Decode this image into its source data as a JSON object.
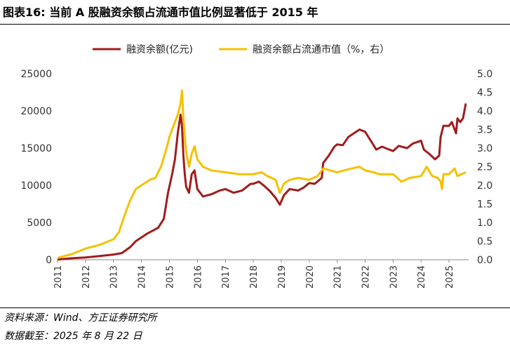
{
  "header": {
    "title": "图表16: 当前 A 股融资余额占流通市值比例显著低于 2015 年"
  },
  "footer": {
    "source": "资料来源：Wind、方正证券研究所",
    "date": "数据截至：2025 年 8 月 22 日"
  },
  "chart_data": {
    "type": "line",
    "legend_position": "top",
    "grid": false,
    "x_ticks": [
      "2011",
      "2012",
      "2013",
      "2014",
      "2015",
      "2016",
      "2017",
      "2018",
      "2019",
      "2020",
      "2021",
      "2022",
      "2023",
      "2024",
      "2025"
    ],
    "xlim": [
      2011.0,
      2025.7
    ],
    "y_left": {
      "ylim": [
        0,
        25000
      ],
      "ticks": [
        0,
        5000,
        10000,
        15000,
        20000,
        25000
      ]
    },
    "y_right": {
      "ylim": [
        0.0,
        5.0
      ],
      "ticks": [
        "0.0",
        "0.5",
        "1.0",
        "1.5",
        "2.0",
        "2.5",
        "3.0",
        "3.5",
        "4.0",
        "4.5",
        "5.0"
      ]
    },
    "series": [
      {
        "name": "融资余额(亿元)",
        "axis": "left",
        "color": "#a01c1c",
        "points": [
          [
            2011.0,
            20
          ],
          [
            2011.5,
            200
          ],
          [
            2012.0,
            300
          ],
          [
            2012.5,
            500
          ],
          [
            2013.0,
            700
          ],
          [
            2013.3,
            900
          ],
          [
            2013.6,
            1700
          ],
          [
            2013.8,
            2500
          ],
          [
            2014.0,
            3000
          ],
          [
            2014.2,
            3500
          ],
          [
            2014.4,
            3900
          ],
          [
            2014.6,
            4300
          ],
          [
            2014.8,
            5500
          ],
          [
            2014.95,
            9000
          ],
          [
            2015.1,
            11500
          ],
          [
            2015.2,
            13500
          ],
          [
            2015.3,
            17000
          ],
          [
            2015.4,
            19500
          ],
          [
            2015.45,
            18000
          ],
          [
            2015.5,
            14000
          ],
          [
            2015.55,
            11500
          ],
          [
            2015.6,
            9800
          ],
          [
            2015.7,
            9000
          ],
          [
            2015.8,
            11500
          ],
          [
            2015.9,
            12000
          ],
          [
            2016.0,
            9500
          ],
          [
            2016.2,
            8500
          ],
          [
            2016.5,
            8800
          ],
          [
            2016.8,
            9300
          ],
          [
            2017.0,
            9500
          ],
          [
            2017.3,
            9000
          ],
          [
            2017.6,
            9300
          ],
          [
            2017.9,
            10200
          ],
          [
            2018.0,
            10200
          ],
          [
            2018.2,
            10500
          ],
          [
            2018.4,
            9900
          ],
          [
            2018.6,
            9200
          ],
          [
            2018.8,
            8300
          ],
          [
            2018.95,
            7400
          ],
          [
            2019.1,
            8700
          ],
          [
            2019.3,
            9500
          ],
          [
            2019.6,
            9300
          ],
          [
            2019.8,
            9700
          ],
          [
            2020.0,
            10300
          ],
          [
            2020.2,
            10200
          ],
          [
            2020.45,
            11000
          ],
          [
            2020.5,
            13000
          ],
          [
            2020.7,
            14000
          ],
          [
            2020.9,
            15200
          ],
          [
            2021.0,
            15500
          ],
          [
            2021.2,
            15400
          ],
          [
            2021.4,
            16500
          ],
          [
            2021.6,
            17000
          ],
          [
            2021.8,
            17500
          ],
          [
            2022.0,
            17200
          ],
          [
            2022.2,
            16000
          ],
          [
            2022.4,
            14800
          ],
          [
            2022.6,
            15200
          ],
          [
            2022.8,
            14900
          ],
          [
            2023.0,
            14600
          ],
          [
            2023.2,
            15300
          ],
          [
            2023.5,
            15000
          ],
          [
            2023.7,
            15600
          ],
          [
            2024.0,
            16000
          ],
          [
            2024.1,
            14800
          ],
          [
            2024.3,
            14200
          ],
          [
            2024.5,
            13500
          ],
          [
            2024.65,
            14000
          ],
          [
            2024.7,
            16500
          ],
          [
            2024.8,
            18000
          ],
          [
            2025.0,
            18000
          ],
          [
            2025.1,
            18500
          ],
          [
            2025.25,
            17000
          ],
          [
            2025.3,
            19000
          ],
          [
            2025.4,
            18500
          ],
          [
            2025.5,
            19000
          ],
          [
            2025.6,
            21000
          ]
        ]
      },
      {
        "name": "融资余额占流通市值（%，右）",
        "axis": "right",
        "color": "#f5c100",
        "points": [
          [
            2011.0,
            0.05
          ],
          [
            2011.5,
            0.15
          ],
          [
            2012.0,
            0.3
          ],
          [
            2012.5,
            0.4
          ],
          [
            2013.0,
            0.55
          ],
          [
            2013.2,
            0.75
          ],
          [
            2013.4,
            1.2
          ],
          [
            2013.6,
            1.6
          ],
          [
            2013.8,
            1.9
          ],
          [
            2014.0,
            2.0
          ],
          [
            2014.3,
            2.15
          ],
          [
            2014.5,
            2.2
          ],
          [
            2014.7,
            2.5
          ],
          [
            2014.9,
            3.0
          ],
          [
            2015.0,
            3.3
          ],
          [
            2015.15,
            3.6
          ],
          [
            2015.3,
            3.9
          ],
          [
            2015.4,
            4.2
          ],
          [
            2015.45,
            4.55
          ],
          [
            2015.5,
            3.8
          ],
          [
            2015.55,
            3.3
          ],
          [
            2015.6,
            2.9
          ],
          [
            2015.7,
            2.5
          ],
          [
            2015.8,
            2.85
          ],
          [
            2015.9,
            3.05
          ],
          [
            2016.0,
            2.7
          ],
          [
            2016.2,
            2.5
          ],
          [
            2016.5,
            2.4
          ],
          [
            2017.0,
            2.35
          ],
          [
            2017.5,
            2.3
          ],
          [
            2018.0,
            2.3
          ],
          [
            2018.3,
            2.35
          ],
          [
            2018.5,
            2.25
          ],
          [
            2018.8,
            2.15
          ],
          [
            2018.95,
            1.8
          ],
          [
            2019.1,
            2.05
          ],
          [
            2019.3,
            2.15
          ],
          [
            2019.6,
            2.2
          ],
          [
            2020.0,
            2.15
          ],
          [
            2020.3,
            2.25
          ],
          [
            2020.5,
            2.45
          ],
          [
            2021.0,
            2.35
          ],
          [
            2021.5,
            2.45
          ],
          [
            2021.8,
            2.5
          ],
          [
            2022.0,
            2.4
          ],
          [
            2022.3,
            2.35
          ],
          [
            2022.5,
            2.3
          ],
          [
            2023.0,
            2.3
          ],
          [
            2023.3,
            2.1
          ],
          [
            2023.6,
            2.2
          ],
          [
            2024.0,
            2.25
          ],
          [
            2024.2,
            2.5
          ],
          [
            2024.4,
            2.25
          ],
          [
            2024.6,
            2.2
          ],
          [
            2024.7,
            2.1
          ],
          [
            2024.75,
            1.9
          ],
          [
            2024.8,
            2.3
          ],
          [
            2025.0,
            2.3
          ],
          [
            2025.2,
            2.45
          ],
          [
            2025.3,
            2.25
          ],
          [
            2025.45,
            2.3
          ],
          [
            2025.6,
            2.35
          ]
        ]
      }
    ]
  }
}
